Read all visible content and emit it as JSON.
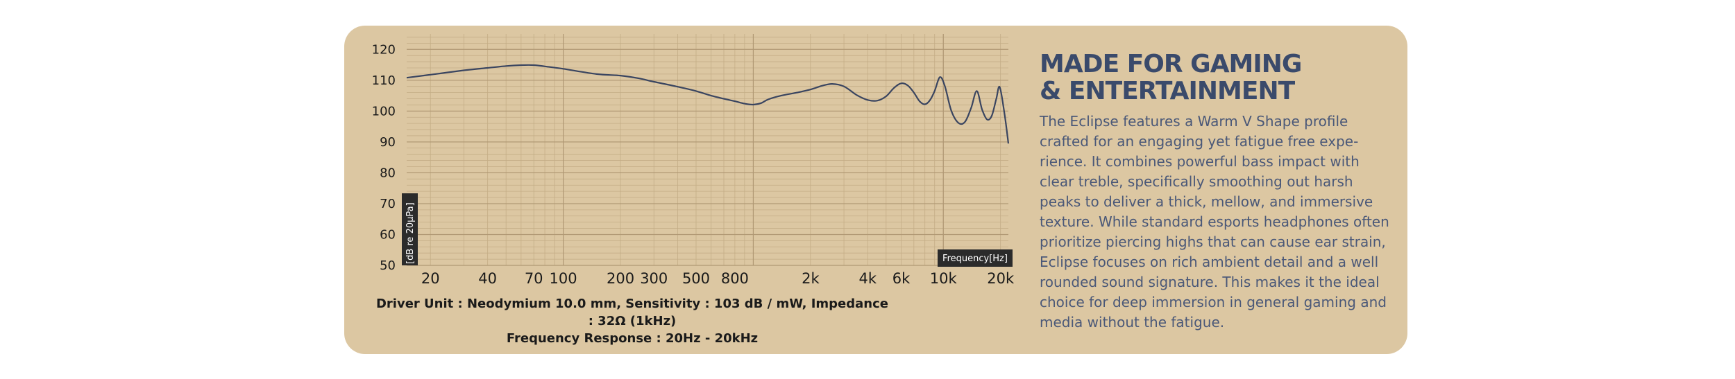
{
  "heading": {
    "line1": "MADE FOR GAMING",
    "line2": "& ENTERTAINMENT"
  },
  "description": "The Eclipse features a Warm V Shape profile crafted for an engaging yet fatigue free expe-rience. It combines powerful bass impact with clear treble, specifically smoothing out harsh peaks to deliver a thick, mellow, and immersive texture. While standard esports headphones often prioritize piercing highs that can cause ear strain, Eclipse focuses on rich ambient detail and a well rounded sound signature. This makes it the ideal choice for deep immersion in general gaming and media without the fatigue.",
  "specs": {
    "line1": "Driver Unit : Neodymium 10.0 mm, Sensitivity : 103 dB / mW, Impedance : 32Ω (1kHz)",
    "line2": "Frequency Response : 20Hz - 20kHz"
  },
  "colors": {
    "card_bg": "#dcc7a2",
    "heading": "#3a4a6b",
    "curve": "#3a4560",
    "label_bg": "#2b2b2b"
  },
  "chart_data": {
    "type": "line",
    "xscale": "log",
    "xlim": [
      15,
      22000
    ],
    "ylim": [
      50,
      125
    ],
    "xlabel": "Frequency[Hz]",
    "ylabel": "[dB re 20µPa]",
    "grid": true,
    "xticks": [
      {
        "value": 20,
        "label": "20"
      },
      {
        "value": 40,
        "label": "40"
      },
      {
        "value": 70,
        "label": "70"
      },
      {
        "value": 100,
        "label": "100"
      },
      {
        "value": 200,
        "label": "200"
      },
      {
        "value": 300,
        "label": "300"
      },
      {
        "value": 500,
        "label": "500"
      },
      {
        "value": 800,
        "label": "800"
      },
      {
        "value": 2000,
        "label": "2k"
      },
      {
        "value": 4000,
        "label": "4k"
      },
      {
        "value": 6000,
        "label": "6k"
      },
      {
        "value": 10000,
        "label": "10k"
      },
      {
        "value": 20000,
        "label": "20k"
      }
    ],
    "yticks": [
      50,
      60,
      70,
      80,
      90,
      100,
      110,
      120
    ],
    "series": [
      {
        "points": [
          [
            15,
            110.8
          ],
          [
            20,
            111.8
          ],
          [
            30,
            113.2
          ],
          [
            40,
            114.0
          ],
          [
            50,
            114.6
          ],
          [
            60,
            114.9
          ],
          [
            70,
            114.9
          ],
          [
            80,
            114.5
          ],
          [
            100,
            113.7
          ],
          [
            150,
            112.0
          ],
          [
            200,
            111.5
          ],
          [
            250,
            110.6
          ],
          [
            300,
            109.5
          ],
          [
            400,
            107.9
          ],
          [
            500,
            106.5
          ],
          [
            600,
            105.0
          ],
          [
            700,
            104.0
          ],
          [
            800,
            103.2
          ],
          [
            900,
            102.4
          ],
          [
            1000,
            102.1
          ],
          [
            1100,
            102.6
          ],
          [
            1200,
            103.8
          ],
          [
            1400,
            105.0
          ],
          [
            1700,
            106.0
          ],
          [
            2000,
            107.0
          ],
          [
            2300,
            108.2
          ],
          [
            2600,
            108.8
          ],
          [
            3000,
            108.0
          ],
          [
            3500,
            105.2
          ],
          [
            4000,
            103.6
          ],
          [
            4500,
            103.4
          ],
          [
            5000,
            104.8
          ],
          [
            5500,
            107.5
          ],
          [
            6000,
            109.0
          ],
          [
            6500,
            108.3
          ],
          [
            7000,
            106.0
          ],
          [
            7500,
            103.2
          ],
          [
            8000,
            102.2
          ],
          [
            8500,
            103.5
          ],
          [
            9000,
            106.5
          ],
          [
            9600,
            111.0
          ],
          [
            10200,
            108.0
          ],
          [
            11000,
            100.2
          ],
          [
            12000,
            96.2
          ],
          [
            13000,
            96.5
          ],
          [
            14000,
            101.0
          ],
          [
            15000,
            106.5
          ],
          [
            16000,
            100.5
          ],
          [
            17000,
            97.3
          ],
          [
            18000,
            98.5
          ],
          [
            19000,
            104.0
          ],
          [
            19800,
            107.8
          ],
          [
            21000,
            99.0
          ],
          [
            22000,
            89.5
          ]
        ]
      }
    ]
  }
}
